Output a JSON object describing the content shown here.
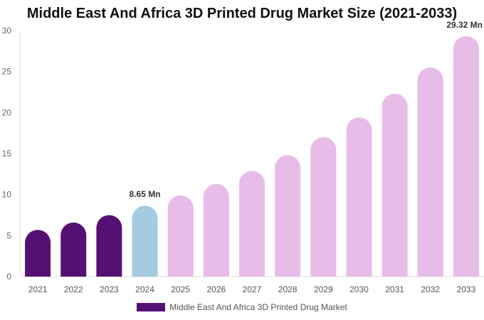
{
  "chart_data": {
    "type": "bar",
    "title": "Middle East And Africa 3D Printed Drug Market Size (2021-2033)",
    "categories": [
      "2021",
      "2022",
      "2023",
      "2024",
      "2025",
      "2026",
      "2027",
      "2028",
      "2029",
      "2030",
      "2031",
      "2032",
      "2033"
    ],
    "series": [
      {
        "name": "Middle East And Africa 3D Printed Drug Market",
        "values": [
          5.7,
          6.6,
          7.5,
          8.65,
          9.9,
          11.3,
          12.9,
          14.8,
          17.0,
          19.4,
          22.3,
          25.5,
          29.32
        ]
      }
    ],
    "data_labels": {
      "3": "8.65 Mn",
      "12": "29.32 Mn"
    },
    "ylim": [
      0,
      30
    ],
    "yticks": [
      0,
      5,
      10,
      15,
      20,
      25,
      30
    ],
    "grid": false,
    "legend_position": "bottom",
    "colors": {
      "historical": "#541173",
      "base_year": "#a4cbe0",
      "forecast": "#e8bce9"
    },
    "base_year_index": 3
  }
}
